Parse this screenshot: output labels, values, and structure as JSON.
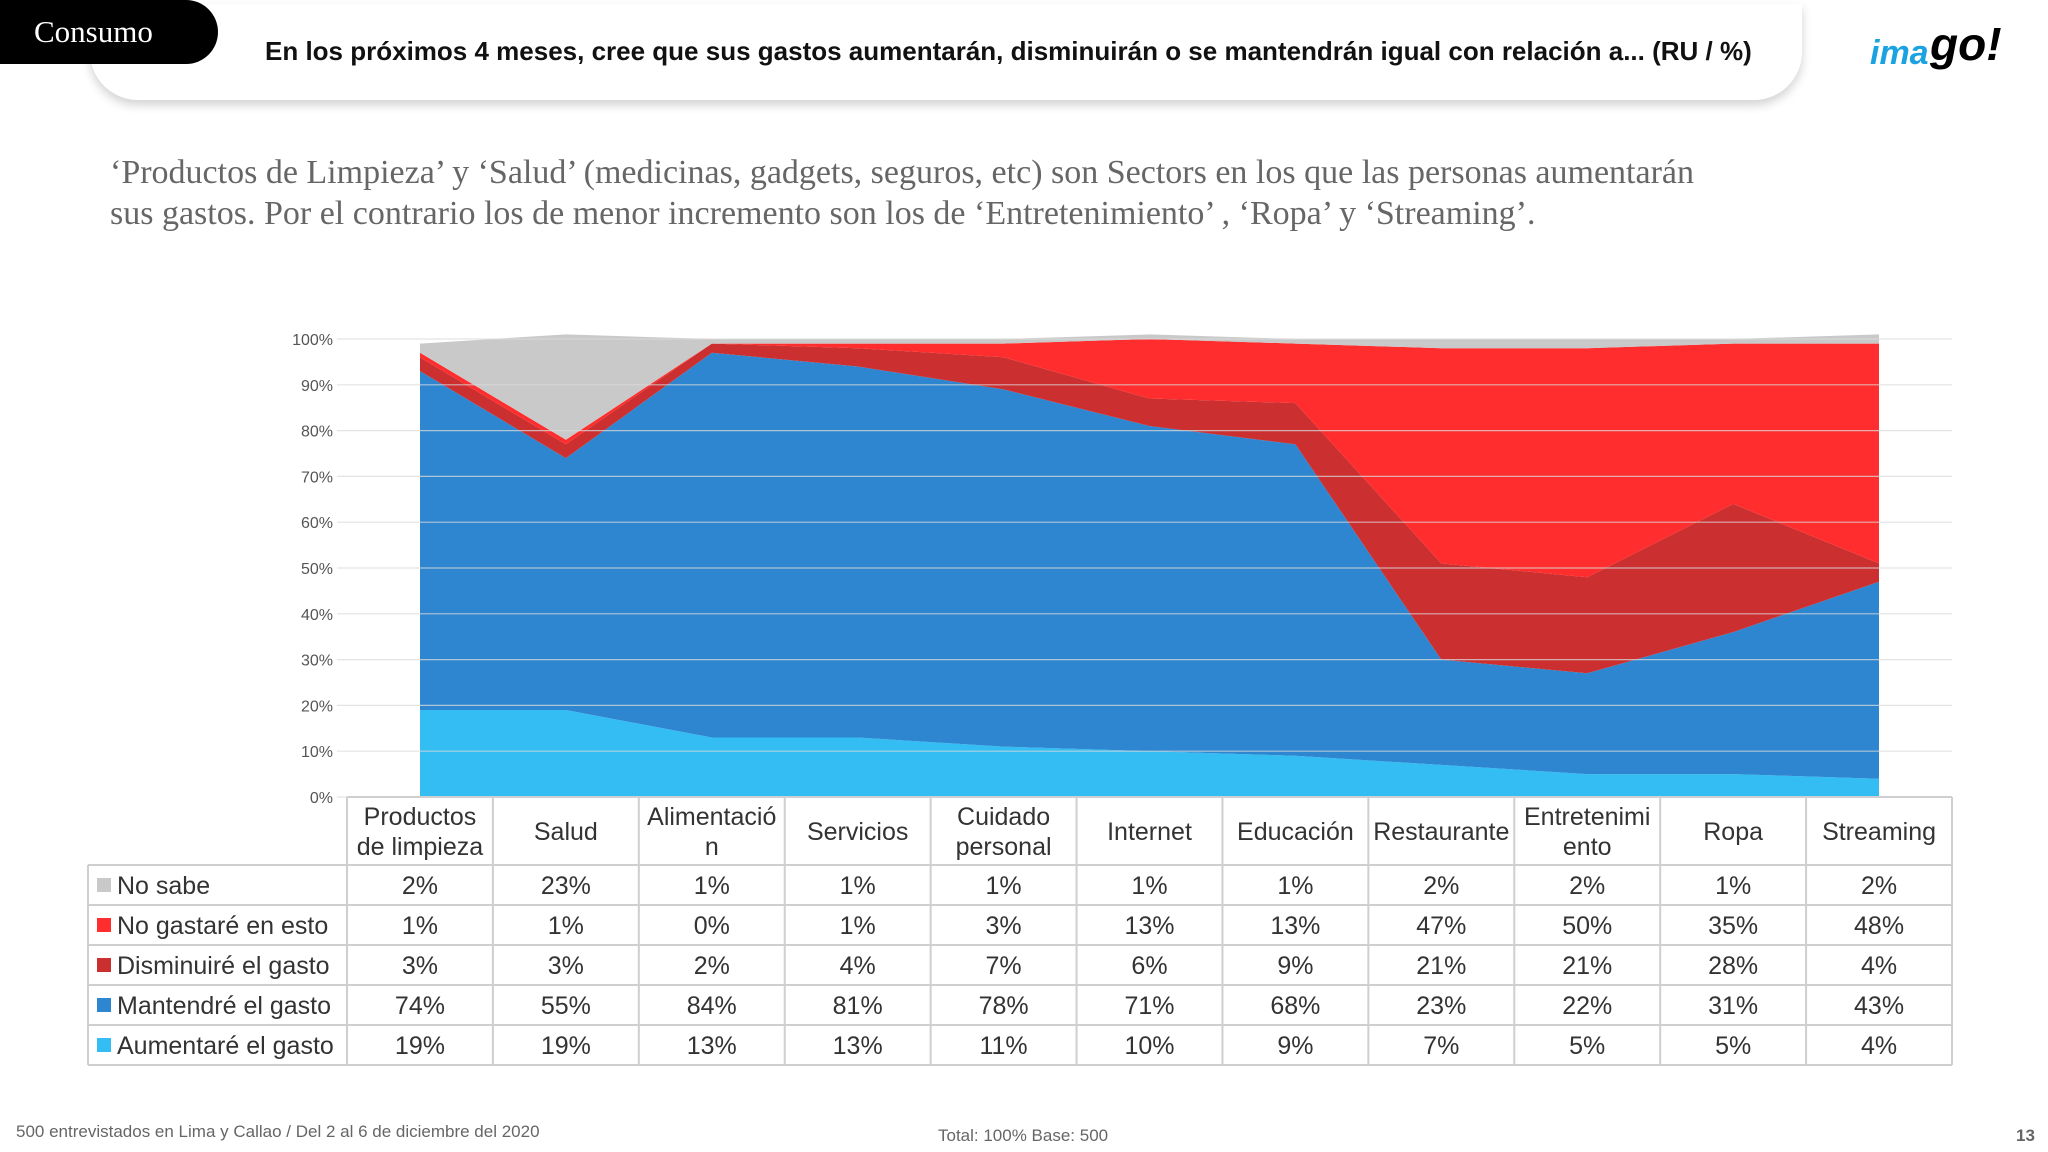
{
  "header": {
    "section": "Consumo",
    "question": "En los próximos 4 meses, cree que sus gastos aumentarán, disminuirán o se mantendrán igual con relación a...  (RU  /  %)",
    "brand": {
      "part1": "ima",
      "part2": "go!",
      "color1": "#1aa3e0",
      "color2": "#000000"
    }
  },
  "subtitle": {
    "line1": "‘Productos de Limpieza’ y ‘Salud’ (medicinas, gadgets, seguros, etc) son Sectors en los que las personas aumentarán",
    "line2": "sus gastos. Por el contrario los de menor incremento son los de ‘Entretenimiento’ , ‘Ropa’ y ‘Streaming’."
  },
  "chart_data": {
    "type": "area",
    "stacked": true,
    "categories": [
      [
        "Productos",
        "de limpieza"
      ],
      [
        "Salud"
      ],
      [
        "Alimentació",
        "n"
      ],
      [
        "Servicios"
      ],
      [
        "Cuidado",
        "personal"
      ],
      [
        "Internet"
      ],
      [
        "Educación"
      ],
      [
        "Restaurante"
      ],
      [
        "Entretenimi",
        "ento"
      ],
      [
        "Ropa"
      ],
      [
        "Streaming"
      ]
    ],
    "series": [
      {
        "name": "Aumentaré el gasto",
        "color": "#33bdf2",
        "values": [
          19,
          19,
          13,
          13,
          11,
          10,
          9,
          7,
          5,
          5,
          4
        ]
      },
      {
        "name": "Mantendré el gasto",
        "color": "#2e86d0",
        "values": [
          74,
          55,
          84,
          81,
          78,
          71,
          68,
          23,
          22,
          31,
          43
        ]
      },
      {
        "name": "Disminuiré el gasto",
        "color": "#cc2f30",
        "values": [
          3,
          3,
          2,
          4,
          7,
          6,
          9,
          21,
          21,
          28,
          4
        ]
      },
      {
        "name": "No gastaré en esto",
        "color": "#ff2d2d",
        "values": [
          1,
          1,
          0,
          1,
          3,
          13,
          13,
          47,
          50,
          35,
          48
        ]
      },
      {
        "name": "No sabe",
        "color": "#c9c9c9",
        "values": [
          2,
          23,
          1,
          1,
          1,
          1,
          1,
          2,
          2,
          1,
          2
        ]
      }
    ],
    "ylim": [
      0,
      100
    ],
    "yticks": [
      "0%",
      "10%",
      "20%",
      "30%",
      "40%",
      "50%",
      "60%",
      "70%",
      "80%",
      "90%",
      "100%"
    ],
    "grid": true,
    "table_row_order": [
      "No sabe",
      "No gastaré en esto",
      "Disminuiré el gasto",
      "Mantendré el gasto",
      "Aumentaré el gasto"
    ],
    "value_suffix": "%"
  },
  "footer": {
    "sample": "500 entrevistados en Lima y Callao   /   Del 2 al 6 de diciembre del 2020",
    "totals": "Total: 100%   Base: 500",
    "page": "13"
  }
}
